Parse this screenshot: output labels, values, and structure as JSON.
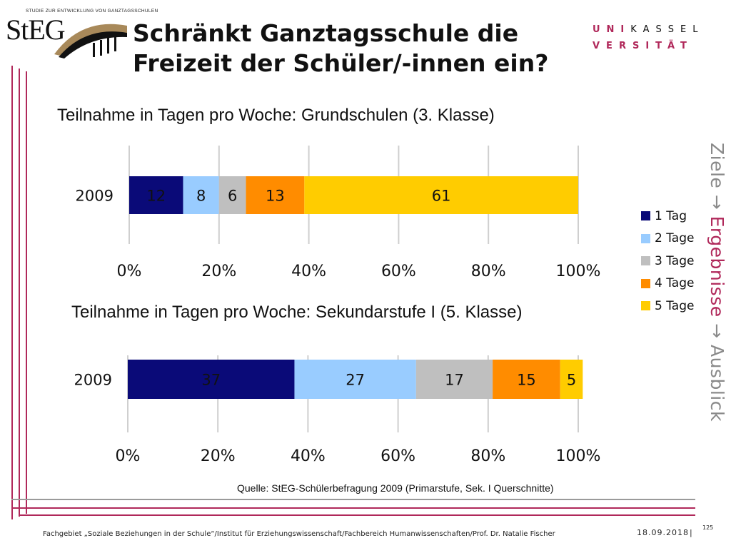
{
  "logo": {
    "name": "StEG",
    "caption": "STUDIE ZUR ENTWICKLUNG VON GANZTAGSSCHULEN"
  },
  "header": {
    "title": "Schränkt Ganztagsschule die Freizeit der Schüler/-innen ein?",
    "uni_row1_accent": "UNI",
    "uni_row1_rest": "KASSEL",
    "uni_row2": "VERSITÄT"
  },
  "sidenav": {
    "item1": "Ziele",
    "arrow1": "→",
    "item2": "Ergebnisse",
    "arrow2": "→",
    "item3": "Ausblick"
  },
  "legend": [
    {
      "label": "1 Tag",
      "color": "#0a0a78"
    },
    {
      "label": "2 Tage",
      "color": "#99ccff"
    },
    {
      "label": "3 Tage",
      "color": "#bfbfbf"
    },
    {
      "label": "4 Tage",
      "color": "#ff8c00"
    },
    {
      "label": "5 Tage",
      "color": "#ffcc00"
    }
  ],
  "chart_data": [
    {
      "type": "bar",
      "orientation": "horizontal",
      "stacked": true,
      "title": "Teilnahme in Tagen pro Woche: Grundschulen (3. Klasse)",
      "categories": [
        "2009"
      ],
      "series": [
        {
          "name": "1 Tag",
          "values": [
            12
          ]
        },
        {
          "name": "2 Tage",
          "values": [
            8
          ]
        },
        {
          "name": "3 Tage",
          "values": [
            6
          ]
        },
        {
          "name": "4 Tage",
          "values": [
            13
          ]
        },
        {
          "name": "5 Tage",
          "values": [
            61
          ]
        }
      ],
      "xlim": [
        0,
        100
      ],
      "xticks": [
        "0%",
        "20%",
        "40%",
        "60%",
        "80%",
        "100%"
      ],
      "grid": true
    },
    {
      "type": "bar",
      "orientation": "horizontal",
      "stacked": true,
      "title": "Teilnahme in Tagen pro Woche: Sekundarstufe I (5. Klasse)",
      "categories": [
        "2009"
      ],
      "series": [
        {
          "name": "1 Tag",
          "values": [
            37
          ]
        },
        {
          "name": "2 Tage",
          "values": [
            27
          ]
        },
        {
          "name": "3 Tage",
          "values": [
            17
          ]
        },
        {
          "name": "4 Tage",
          "values": [
            15
          ]
        },
        {
          "name": "5 Tage",
          "values": [
            5
          ]
        }
      ],
      "xlim": [
        0,
        100
      ],
      "xticks": [
        "0%",
        "20%",
        "40%",
        "60%",
        "80%",
        "100%"
      ],
      "grid": true
    }
  ],
  "source": "Quelle:  StEG-Schülerbefragung 2009 (Primarstufe, Sek. I Querschnitte)",
  "footer": {
    "text": "Fachgebiet „Soziale Beziehungen in der Schule“/Institut für Erziehungswissenschaft/Fachbereich Humanwissenschaften/Prof. Dr. Natalie Fischer",
    "date": "18.09.2018",
    "separator": "|",
    "page": "125"
  }
}
